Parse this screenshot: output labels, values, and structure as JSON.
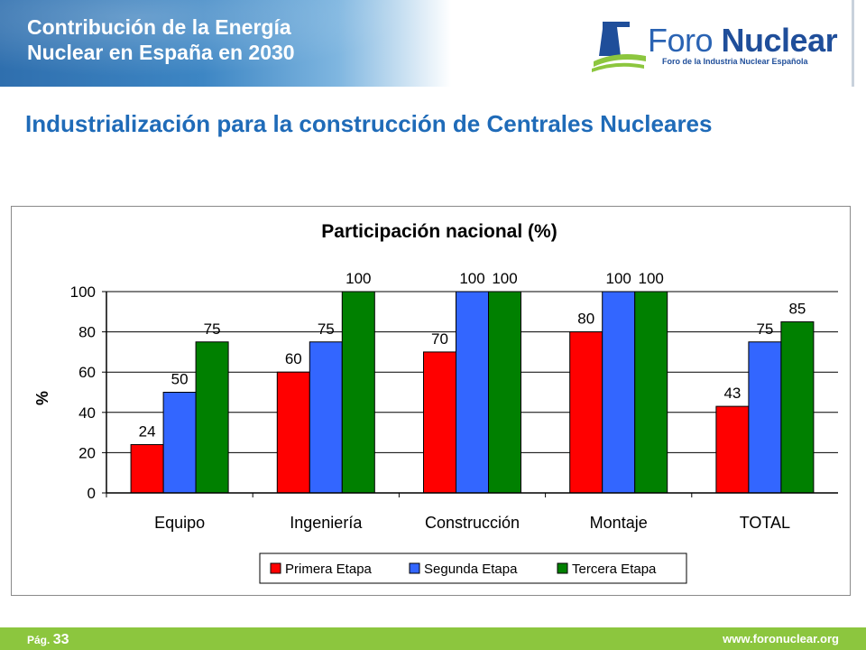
{
  "header": {
    "title_line1": "Contribución de la Energía",
    "title_line2": "Nuclear en España en 2030"
  },
  "logo": {
    "name_part1": "Foro",
    "name_part2": "Nuclear",
    "subtitle": "Foro de la Industria Nuclear Española",
    "colors": {
      "blue": "#1f4e9a",
      "green": "#8cc63e"
    }
  },
  "page_title": "Industrialización para la construcción de Centrales Nucleares",
  "footer": {
    "page_label": "Pág.",
    "page_number": "33",
    "url": "www.foronuclear.org"
  },
  "chart_data": {
    "type": "bar",
    "title": "Participación nacional (%)",
    "ylabel": "%",
    "xlabel": "",
    "ylim": [
      0,
      100
    ],
    "yticks": [
      0,
      20,
      40,
      60,
      80,
      100
    ],
    "grid": true,
    "legend_position": "bottom",
    "categories": [
      "Equipo",
      "Ingeniería",
      "Construcción",
      "Montaje",
      "TOTAL"
    ],
    "series": [
      {
        "name": "Primera Etapa",
        "color": "#ff0000",
        "values": [
          24,
          60,
          70,
          80,
          43
        ]
      },
      {
        "name": "Segunda Etapa",
        "color": "#3366ff",
        "values": [
          50,
          75,
          100,
          100,
          75
        ]
      },
      {
        "name": "Tercera Etapa",
        "color": "#008000",
        "values": [
          75,
          100,
          100,
          100,
          85
        ]
      }
    ]
  }
}
